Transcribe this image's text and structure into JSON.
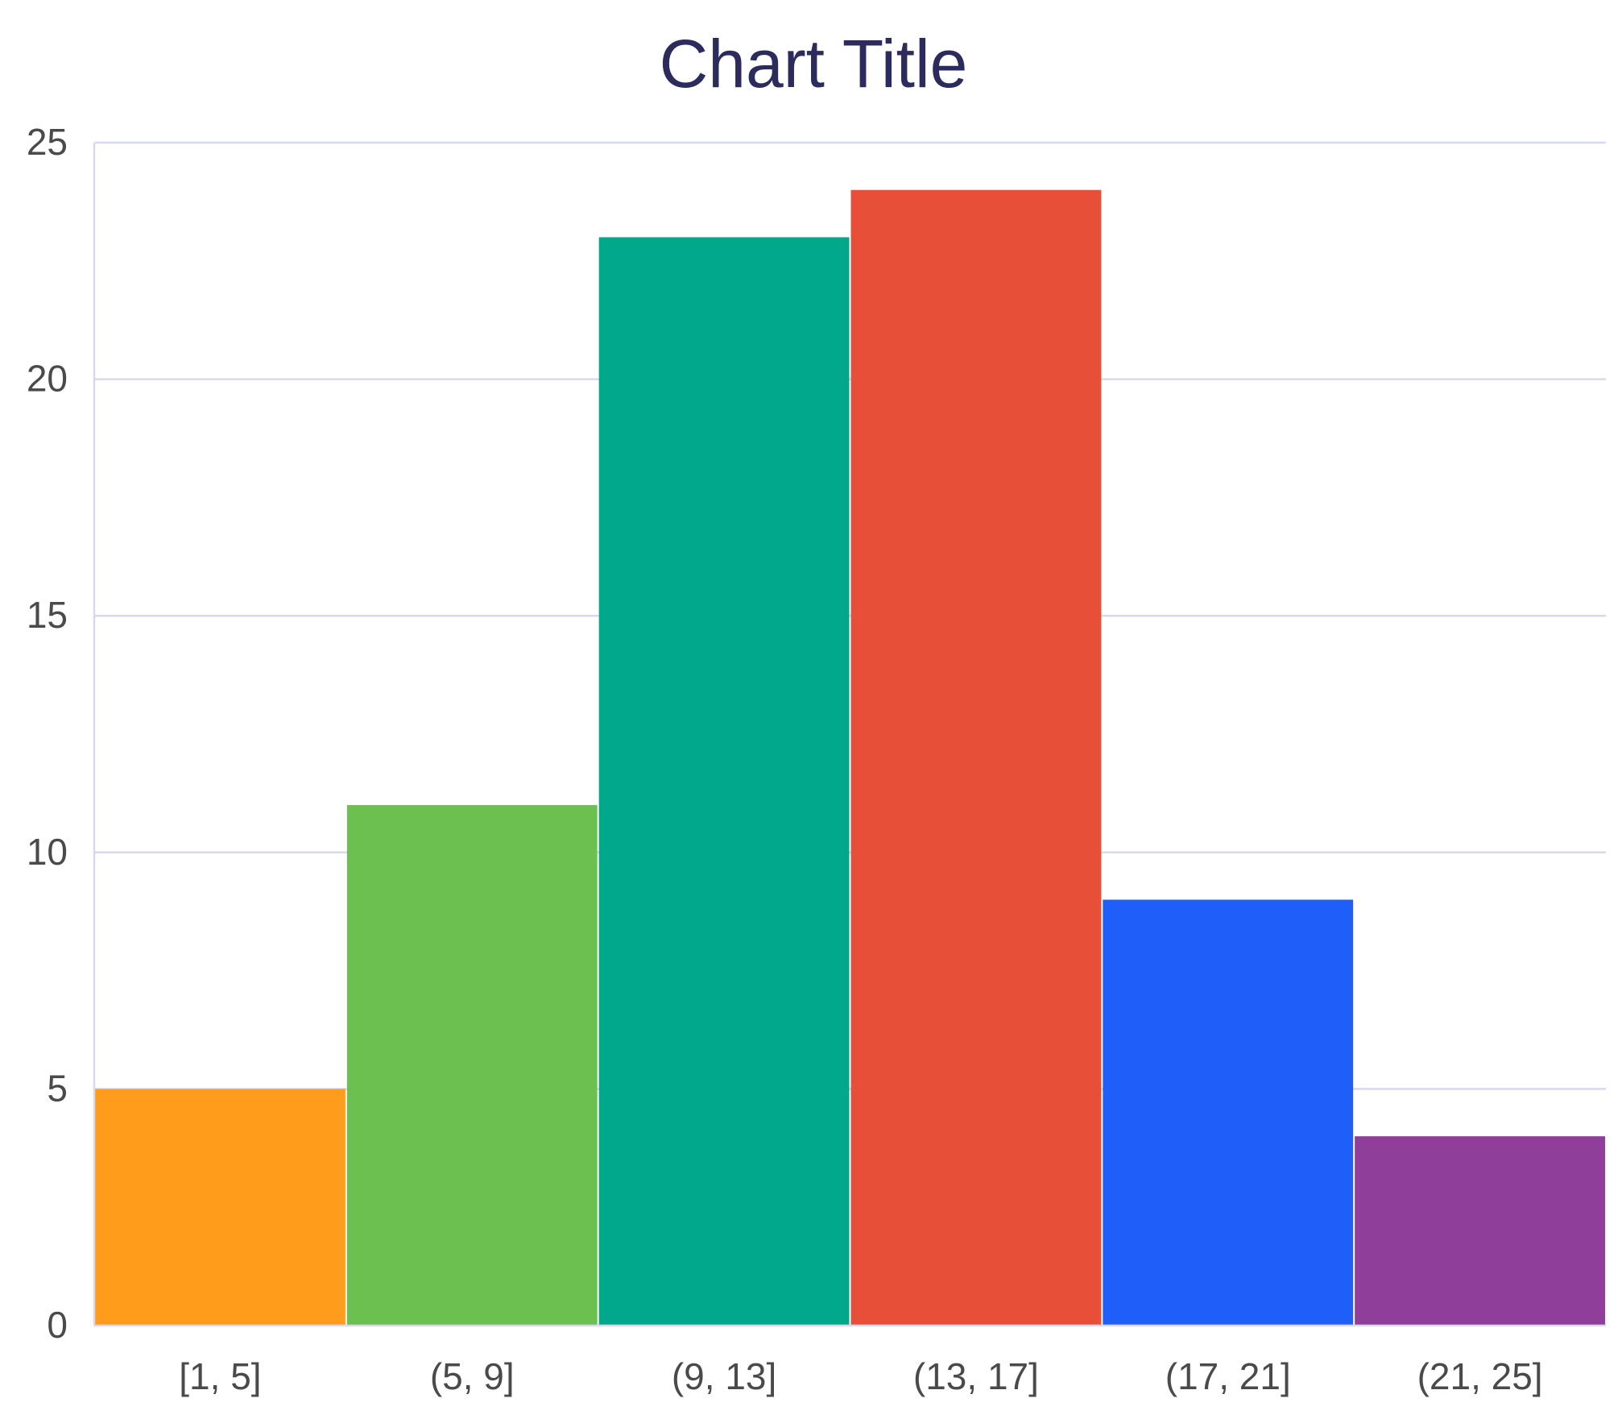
{
  "chart_data": {
    "type": "bar",
    "title": "Chart Title",
    "xlabel": "",
    "ylabel": "",
    "categories": [
      "[1, 5]",
      "(5, 9]",
      "(9, 13]",
      "(13, 17]",
      "(17, 21]",
      "(21, 25]"
    ],
    "values": [
      5,
      11,
      23,
      24,
      9,
      4
    ],
    "colors": [
      "#FF9C1C",
      "#6BC04F",
      "#02A88A",
      "#E84F38",
      "#1F5EF9",
      "#8F3E9A"
    ],
    "ylim": [
      0,
      25
    ],
    "yticks": [
      0,
      5,
      10,
      15,
      20,
      25
    ],
    "grid": true,
    "legend": "none"
  },
  "style": {
    "title_color": "#2B2B5E",
    "tick_color": "#4A4A4A",
    "grid_color": "#D8D8EE"
  }
}
